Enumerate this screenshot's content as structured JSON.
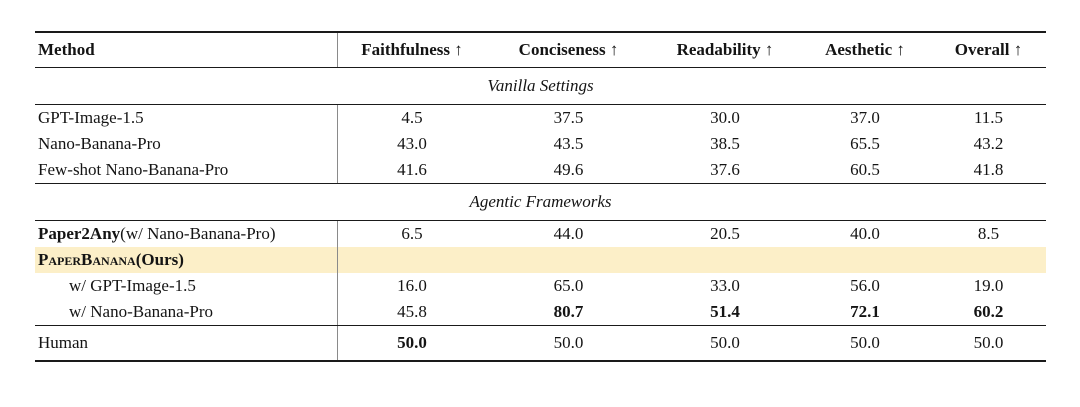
{
  "table": {
    "highlight_color": "#FCEFC8",
    "header": {
      "method": "Method",
      "metrics": [
        "Faithfulness ↑",
        "Conciseness ↑",
        "Readability ↑",
        "Aesthetic ↑",
        "Overall ↑"
      ]
    },
    "sections": [
      {
        "title": "Vanilla Settings",
        "rows": [
          {
            "method": {
              "segments": [
                {
                  "t": "GPT-Image-1.5"
                }
              ],
              "indent": false
            },
            "values": [
              "4.5",
              "37.5",
              "30.0",
              "37.0",
              "11.5"
            ],
            "bold": [
              false,
              false,
              false,
              false,
              false
            ],
            "highlight": false
          },
          {
            "method": {
              "segments": [
                {
                  "t": "Nano-Banana-Pro"
                }
              ],
              "indent": false
            },
            "values": [
              "43.0",
              "43.5",
              "38.5",
              "65.5",
              "43.2"
            ],
            "bold": [
              false,
              false,
              false,
              false,
              false
            ],
            "highlight": false
          },
          {
            "method": {
              "segments": [
                {
                  "t": "Few-shot Nano-Banana-Pro"
                }
              ],
              "indent": false
            },
            "values": [
              "41.6",
              "49.6",
              "37.6",
              "60.5",
              "41.8"
            ],
            "bold": [
              false,
              false,
              false,
              false,
              false
            ],
            "highlight": false
          }
        ]
      },
      {
        "title": "Agentic Frameworks",
        "rows": [
          {
            "method": {
              "segments": [
                {
                  "t": "Paper2Any",
                  "b": true
                },
                {
                  "t": " (w/ Nano-Banana-Pro)"
                }
              ],
              "indent": false
            },
            "values": [
              "6.5",
              "44.0",
              "20.5",
              "40.0",
              "8.5"
            ],
            "bold": [
              false,
              false,
              false,
              false,
              false
            ],
            "highlight": false
          },
          {
            "method": {
              "segments": [
                {
                  "t": "PaperBanana",
                  "b": true,
                  "sc": true
                },
                {
                  "t": " (Ours)",
                  "b": true
                }
              ],
              "indent": false
            },
            "values": [
              "",
              "",
              "",
              "",
              ""
            ],
            "bold": [
              false,
              false,
              false,
              false,
              false
            ],
            "highlight": true
          },
          {
            "method": {
              "segments": [
                {
                  "t": "w/ GPT-Image-1.5"
                }
              ],
              "indent": true
            },
            "values": [
              "16.0",
              "65.0",
              "33.0",
              "56.0",
              "19.0"
            ],
            "bold": [
              false,
              false,
              false,
              false,
              false
            ],
            "highlight": false
          },
          {
            "method": {
              "segments": [
                {
                  "t": "w/ Nano-Banana-Pro"
                }
              ],
              "indent": true
            },
            "values": [
              "45.8",
              "80.7",
              "51.4",
              "72.1",
              "60.2"
            ],
            "bold": [
              false,
              true,
              true,
              true,
              true
            ],
            "highlight": false
          }
        ]
      }
    ],
    "footer": {
      "rows": [
        {
          "method": {
            "segments": [
              {
                "t": "Human"
              }
            ],
            "indent": false
          },
          "values": [
            "50.0",
            "50.0",
            "50.0",
            "50.0",
            "50.0"
          ],
          "bold": [
            true,
            false,
            false,
            false,
            false
          ],
          "highlight": false
        }
      ]
    }
  }
}
